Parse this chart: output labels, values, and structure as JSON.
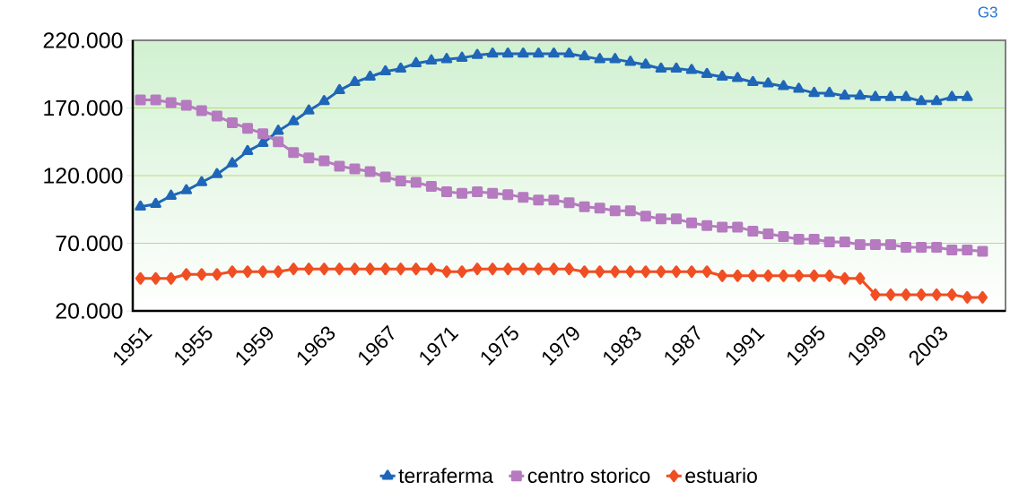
{
  "chart_data": {
    "type": "line",
    "categories": [
      "1951",
      null,
      null,
      null,
      "1955",
      null,
      null,
      null,
      "1959",
      null,
      null,
      null,
      "1963",
      null,
      null,
      null,
      "1967",
      null,
      null,
      null,
      "1971",
      null,
      null,
      null,
      "1975",
      null,
      null,
      null,
      "1979",
      null,
      null,
      null,
      "1983",
      null,
      null,
      null,
      "1987",
      null,
      null,
      null,
      "1991",
      null,
      null,
      null,
      "1995",
      null,
      null,
      null,
      "1999",
      null,
      null,
      null,
      "2003",
      null,
      null,
      null,
      null
    ],
    "series": [
      {
        "name": "terraferma",
        "color": "#1f66b8",
        "marker": "triangle",
        "values": [
          97000,
          99000,
          105000,
          109000,
          115000,
          121000,
          129000,
          138000,
          144000,
          153000,
          160000,
          168000,
          175000,
          183000,
          189000,
          193000,
          197000,
          199000,
          203000,
          205000,
          206000,
          207000,
          209000,
          210000,
          210000,
          210000,
          210000,
          210000,
          210000,
          208000,
          206000,
          206000,
          204000,
          202000,
          199000,
          199000,
          198000,
          195000,
          193000,
          192000,
          189000,
          188000,
          186000,
          184000,
          181000,
          181000,
          179000,
          179000,
          178000,
          178000,
          178000,
          175000,
          175000,
          178000,
          178000,
          null,
          null
        ]
      },
      {
        "name": "centro storico",
        "color": "#b57abf",
        "marker": "square",
        "values": [
          176000,
          176000,
          174000,
          172000,
          168000,
          164000,
          159000,
          155000,
          151000,
          145000,
          137000,
          133000,
          131000,
          127000,
          125000,
          123000,
          119000,
          116000,
          115000,
          112000,
          108000,
          107000,
          108000,
          107000,
          106000,
          104000,
          102000,
          102000,
          100000,
          97000,
          96000,
          94000,
          94000,
          90000,
          88000,
          88000,
          85000,
          83000,
          82000,
          82000,
          79000,
          77000,
          75000,
          73000,
          73000,
          71000,
          71000,
          69000,
          69000,
          69000,
          67000,
          67000,
          67000,
          65000,
          65000,
          64000,
          null
        ]
      },
      {
        "name": "estuario",
        "color": "#f04e23",
        "marker": "diamond",
        "values": [
          44000,
          44000,
          44000,
          47000,
          47000,
          47000,
          49000,
          49000,
          49000,
          49000,
          51000,
          51000,
          51000,
          51000,
          51000,
          51000,
          51000,
          51000,
          51000,
          51000,
          49000,
          49000,
          51000,
          51000,
          51000,
          51000,
          51000,
          51000,
          51000,
          49000,
          49000,
          49000,
          49000,
          49000,
          49000,
          49000,
          49000,
          49000,
          46000,
          46000,
          46000,
          46000,
          46000,
          46000,
          46000,
          46000,
          44000,
          44000,
          32000,
          32000,
          32000,
          32000,
          32000,
          32000,
          30000,
          30000,
          null
        ]
      }
    ],
    "ylim": [
      20000,
      220000
    ],
    "yticks": [
      {
        "value": 20000,
        "label": "20.000"
      },
      {
        "value": 70000,
        "label": "70.000"
      },
      {
        "value": 120000,
        "label": "120.000"
      },
      {
        "value": 170000,
        "label": "170.000"
      },
      {
        "value": 220000,
        "label": "220.000"
      }
    ],
    "grid": "y",
    "legend": "bottom",
    "line_style": "solid",
    "annotations": [
      "G3"
    ]
  }
}
